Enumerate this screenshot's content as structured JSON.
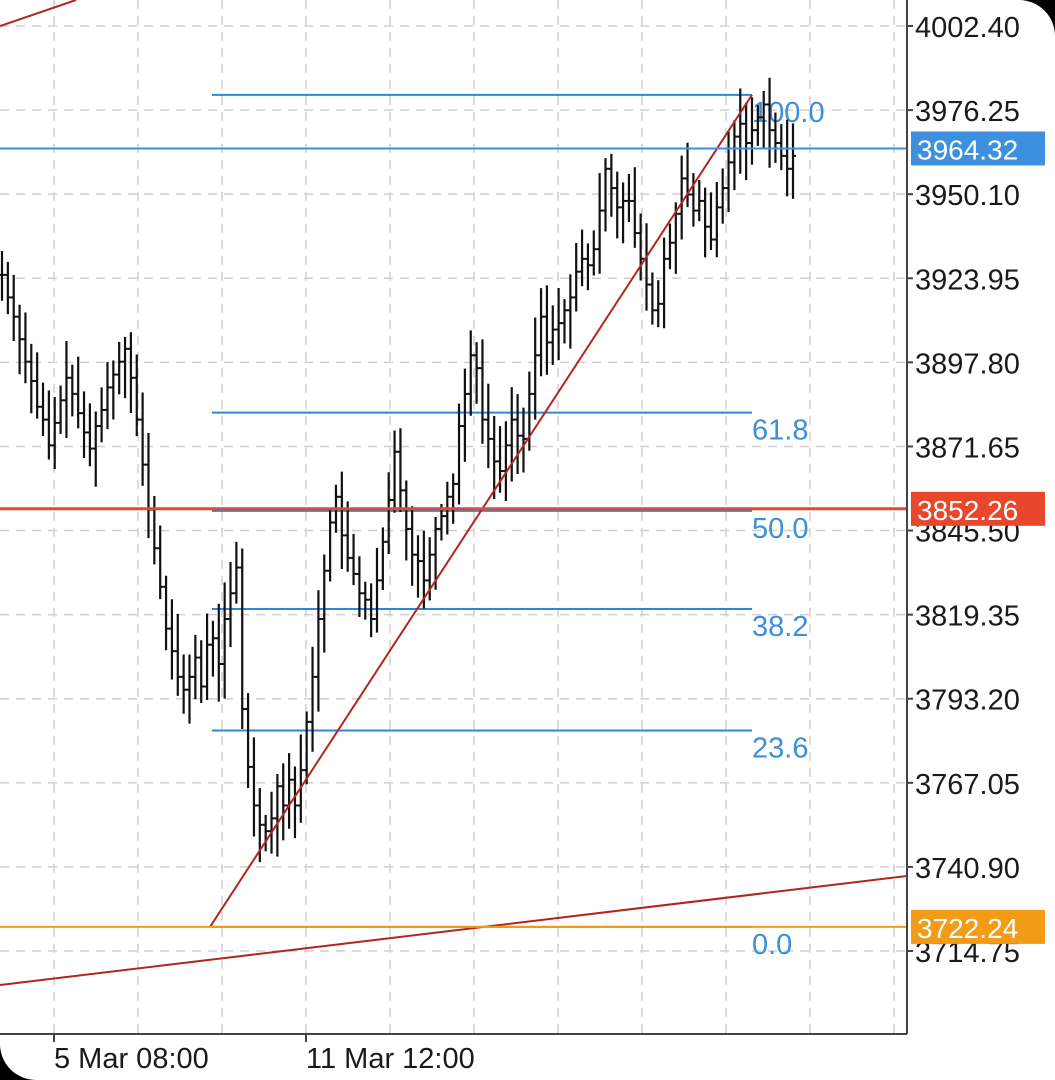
{
  "chart_data": {
    "type": "line",
    "series_style": "ohlc-bars",
    "y_axis": {
      "ticks": [
        "4002.40",
        "3976.25",
        "3950.10",
        "3923.95",
        "3897.80",
        "3871.65",
        "3845.50",
        "3819.35",
        "3793.20",
        "3767.05",
        "3740.90",
        "3714.75"
      ],
      "range": [
        3702,
        4010
      ],
      "position": "right"
    },
    "x_axis": {
      "ticks": [
        "5 Mar 08:00",
        "11 Mar 12:00"
      ]
    },
    "grid": true,
    "price_badges": [
      {
        "label": "3964.32",
        "value": 3964.32,
        "color": "#3d8fe0",
        "line_color": "#3d8fe0"
      },
      {
        "label": "3852.26",
        "value": 3852.26,
        "color": "#e8472b",
        "line_color": "#e8472b"
      },
      {
        "label": "3722.24",
        "value": 3722.24,
        "color": "#f29b16",
        "line_color": "#f29b16"
      }
    ],
    "fibonacci": {
      "low": 3722.24,
      "high": 3981.0,
      "levels": [
        {
          "label": "100.0",
          "ratio": 1.0
        },
        {
          "label": "61.8",
          "ratio": 0.618
        },
        {
          "label": "50.0",
          "ratio": 0.5
        },
        {
          "label": "38.2",
          "ratio": 0.382
        },
        {
          "label": "23.6",
          "ratio": 0.236
        },
        {
          "label": "0.0",
          "ratio": 0.0
        }
      ],
      "color": "#2f86d8"
    },
    "trend_line_color": "#b3261e",
    "bars": [
      3925,
      3918,
      3912,
      3905,
      3898,
      3892,
      3884,
      3880,
      3872,
      3879,
      3886,
      3893,
      3888,
      3882,
      3876,
      3871,
      3878,
      3883,
      3890,
      3894,
      3898,
      3902,
      3893,
      3880,
      3866,
      3852,
      3840,
      3828,
      3815,
      3808,
      3800,
      3796,
      3800,
      3806,
      3797,
      3810,
      3812,
      3804,
      3818,
      3826,
      3834,
      3790,
      3772,
      3760,
      3754,
      3752,
      3756,
      3766,
      3760,
      3768,
      3760,
      3771,
      3786,
      3800,
      3818,
      3833,
      3848,
      3856,
      3844,
      3837,
      3832,
      3826,
      3824,
      3818,
      3830,
      3842,
      3855,
      3870,
      3858,
      3846,
      3838,
      3836,
      3830,
      3838,
      3846,
      3850,
      3856,
      3860,
      3878,
      3888,
      3900,
      3896,
      3880,
      3874,
      3867,
      3864,
      3872,
      3880,
      3875,
      3874,
      3888,
      3900,
      3912,
      3904,
      3908,
      3910,
      3914,
      3918,
      3926,
      3930,
      3928,
      3933,
      3945,
      3958,
      3952,
      3946,
      3948,
      3948,
      3938,
      3930,
      3922,
      3914,
      3916,
      3930,
      3935,
      3944,
      3955,
      3950,
      3945,
      3948,
      3940,
      3936,
      3946,
      3952,
      3960,
      3968,
      3972,
      3966,
      3970,
      3974,
      3978,
      3970,
      3966,
      3962,
      3958,
      3962
    ]
  }
}
